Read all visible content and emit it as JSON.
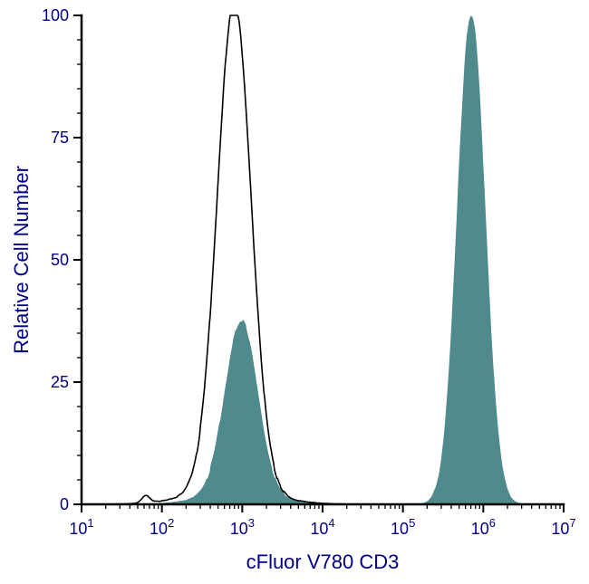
{
  "page": {
    "background": "#ffffff"
  },
  "chart_data": {
    "type": "area",
    "subtype": "flow-cytometry-histogram-overlay",
    "title": "",
    "xlabel": "cFluor V780 CD3",
    "ylabel": "Relative Cell Number",
    "x_scale": "log10",
    "x_exponent_range": [
      1,
      7
    ],
    "ylim": [
      0,
      100
    ],
    "yticks": [
      0,
      25,
      50,
      75,
      100
    ],
    "y_minor_tick_step": 5,
    "x_major_tick_exponents": [
      1,
      2,
      3,
      4,
      5,
      6,
      7
    ],
    "x_minor_ticks": true,
    "grid": false,
    "legend": "none",
    "colors": {
      "axis": "#000000",
      "tick_labels": "#00008b",
      "axis_labels": "#00008b",
      "filled_series": "#4f8a8c",
      "open_series": "#000000"
    },
    "series": [
      {
        "name": "unstained-control-open-histogram",
        "style": "open",
        "stroke_width": 1.6,
        "domain_log10": [
          1.12,
          4.4
        ],
        "peaks": [
          {
            "center_log10": 2.9,
            "sigma_log10": 0.21,
            "height": 100
          },
          {
            "center_log10": 2.85,
            "sigma_log10": 0.5,
            "height": 3
          },
          {
            "center_log10": 1.8,
            "sigma_log10": 0.05,
            "height": 1.5
          }
        ]
      },
      {
        "name": "cfluor-v780-cd3-stained-filled-histogram",
        "style": "filled",
        "stroke_width": 1,
        "domain_log10": [
          1.25,
          6.6
        ],
        "peaks": [
          {
            "center_log10": 2.99,
            "sigma_log10": 0.2,
            "height": 35
          },
          {
            "center_log10": 2.95,
            "sigma_log10": 0.42,
            "height": 2.5
          },
          {
            "center_log10": 5.85,
            "sigma_log10": 0.17,
            "height": 100
          }
        ]
      }
    ]
  }
}
